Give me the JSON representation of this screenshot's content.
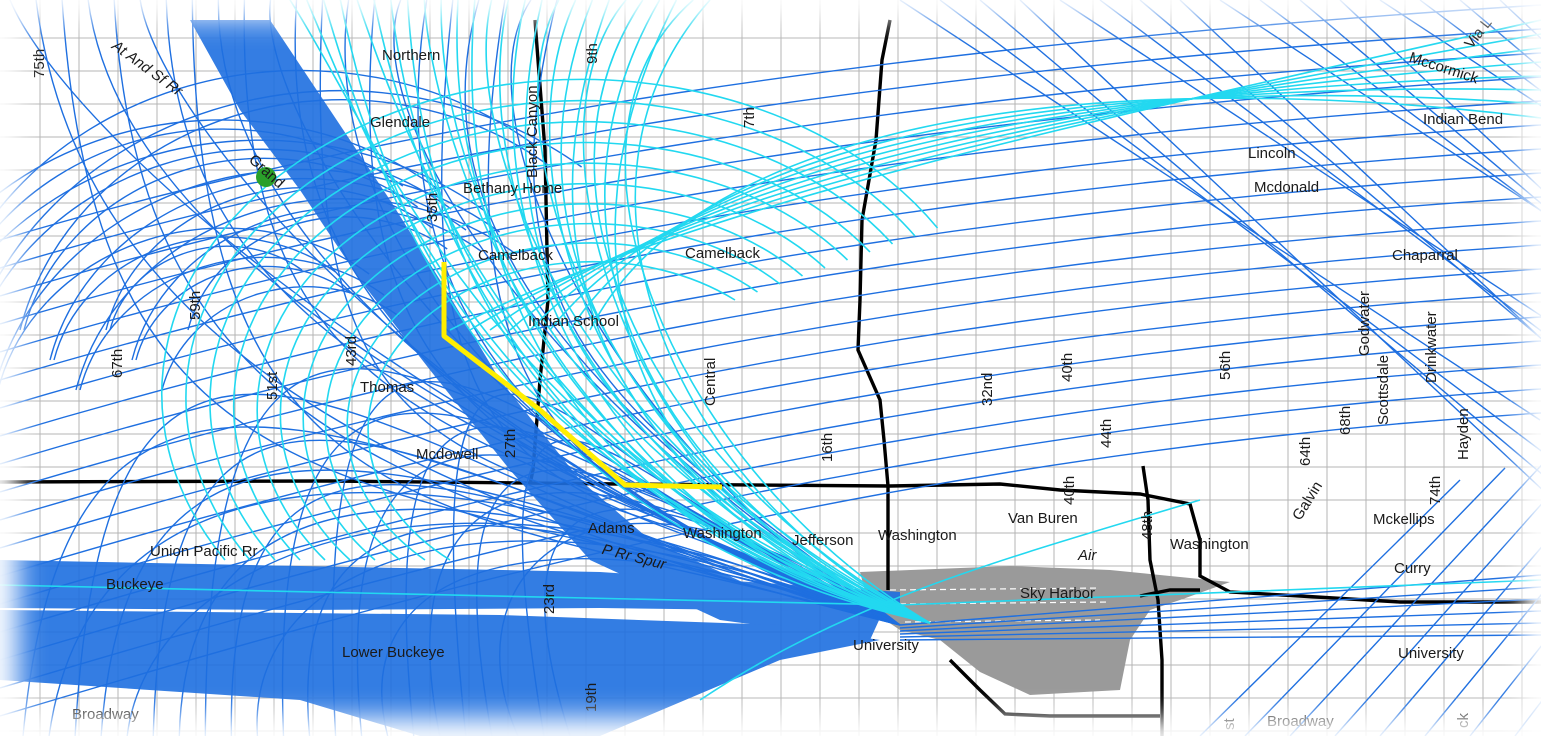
{
  "colors": {
    "background": "#ffffff",
    "street_grid": "#b4b4b4",
    "highway": "#000000",
    "airport": "#9a9a9a",
    "flight_track_dark": "#1e6fe0",
    "flight_track_light": "#22d8f0",
    "highlight_route": "#ffee00",
    "waypoint": "#2aa02a"
  },
  "icons": {
    "waypoint": "green-dot-icon",
    "airport": "airport-area"
  },
  "streets_horizontal": [
    {
      "id": "northern",
      "text": "Northern"
    },
    {
      "id": "glendale",
      "text": "Glendale"
    },
    {
      "id": "bethany-home",
      "text": "Bethany Home"
    },
    {
      "id": "camelback-w",
      "text": "Camelback"
    },
    {
      "id": "camelback-e",
      "text": "Camelback"
    },
    {
      "id": "indian-school",
      "text": "Indian School"
    },
    {
      "id": "thomas",
      "text": "Thomas"
    },
    {
      "id": "mcdowell",
      "text": "Mcdowell"
    },
    {
      "id": "adams",
      "text": "Adams"
    },
    {
      "id": "washington-w",
      "text": "Washington"
    },
    {
      "id": "jefferson",
      "text": "Jefferson"
    },
    {
      "id": "washington-c",
      "text": "Washington"
    },
    {
      "id": "van-buren",
      "text": "Van Buren"
    },
    {
      "id": "washington-e",
      "text": "Washington"
    },
    {
      "id": "air",
      "text": "Air"
    },
    {
      "id": "sky-harbor",
      "text": "Sky Harbor"
    },
    {
      "id": "union-pacific",
      "text": "Union Pacific Rr"
    },
    {
      "id": "buckeye",
      "text": "Buckeye"
    },
    {
      "id": "lower-buckeye",
      "text": "Lower Buckeye"
    },
    {
      "id": "broadway-w",
      "text": "Broadway"
    },
    {
      "id": "broadway-e",
      "text": "Broadway"
    },
    {
      "id": "university-c",
      "text": "University"
    },
    {
      "id": "university-e",
      "text": "University"
    },
    {
      "id": "lincoln",
      "text": "Lincoln"
    },
    {
      "id": "mcdonald",
      "text": "Mcdonald"
    },
    {
      "id": "chaparral",
      "text": "Chaparral"
    },
    {
      "id": "indian-bend",
      "text": "Indian Bend"
    },
    {
      "id": "mccormick",
      "text": "Mccormick"
    },
    {
      "id": "via-linda",
      "text": "Via L"
    },
    {
      "id": "mckellips",
      "text": "Mckellips"
    },
    {
      "id": "curry",
      "text": "Curry"
    },
    {
      "id": "galvin",
      "text": "Galvin"
    },
    {
      "id": "p-rr-spur",
      "text": "P Rr Spur"
    },
    {
      "id": "grand",
      "text": "Grand"
    },
    {
      "id": "at-and-sf-rr",
      "text": "At And Sf Rr"
    }
  ],
  "streets_vertical": [
    {
      "id": "75th",
      "text": "75th"
    },
    {
      "id": "67th",
      "text": "67th"
    },
    {
      "id": "59th",
      "text": "59th"
    },
    {
      "id": "51st",
      "text": "51st"
    },
    {
      "id": "43rd",
      "text": "43rd"
    },
    {
      "id": "35th",
      "text": "35th"
    },
    {
      "id": "27th",
      "text": "27th"
    },
    {
      "id": "23rd",
      "text": "23rd"
    },
    {
      "id": "19th",
      "text": "19th"
    },
    {
      "id": "black-canyon",
      "text": "Black Canyon"
    },
    {
      "id": "9th",
      "text": "9th"
    },
    {
      "id": "7th",
      "text": "7th"
    },
    {
      "id": "central",
      "text": "Central"
    },
    {
      "id": "16th",
      "text": "16th"
    },
    {
      "id": "32nd",
      "text": "32nd"
    },
    {
      "id": "40th",
      "text": "40th"
    },
    {
      "id": "40th-b",
      "text": "40th"
    },
    {
      "id": "44th",
      "text": "44th"
    },
    {
      "id": "48th",
      "text": "48th"
    },
    {
      "id": "56th",
      "text": "56th"
    },
    {
      "id": "64th",
      "text": "64th"
    },
    {
      "id": "68th",
      "text": "68th"
    },
    {
      "id": "godwater",
      "text": "Godwater"
    },
    {
      "id": "scottsdale",
      "text": "Scottsdale"
    },
    {
      "id": "drinkwater",
      "text": "Drinkwater"
    },
    {
      "id": "hayden",
      "text": "Hayden"
    },
    {
      "id": "74th",
      "text": "74th"
    },
    {
      "id": "st-partial",
      "text": "st"
    },
    {
      "id": "ck-partial",
      "text": "ck"
    }
  ]
}
